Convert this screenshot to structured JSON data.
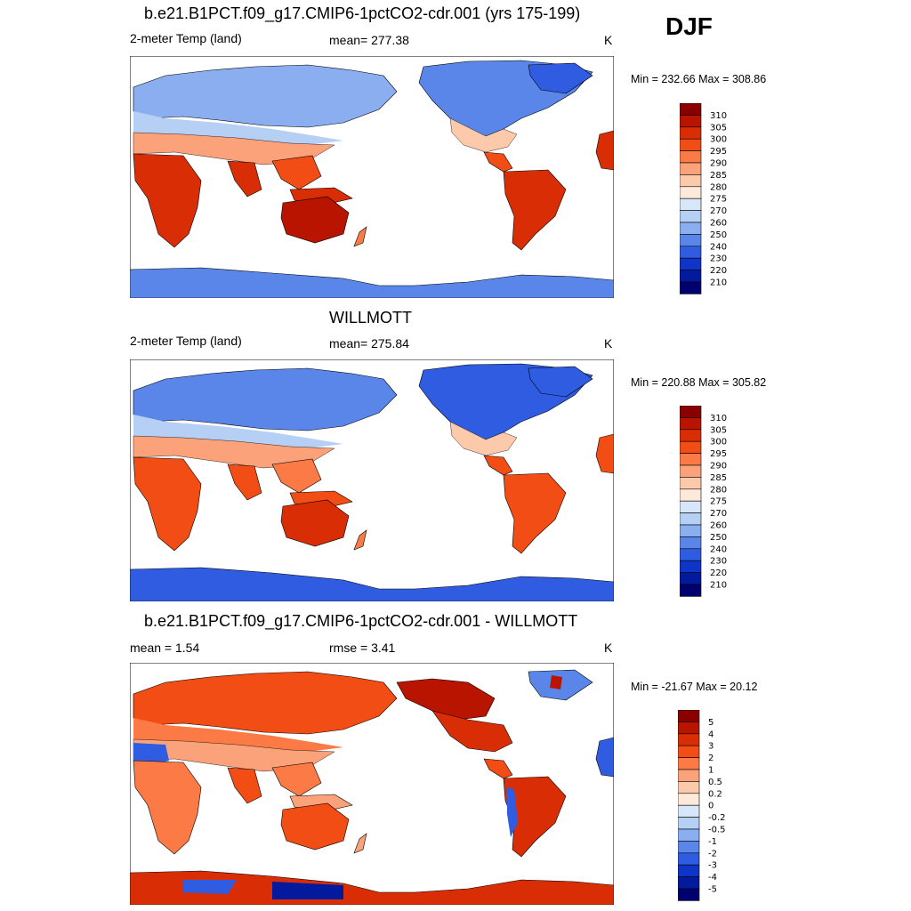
{
  "season": "DJF",
  "units": "K",
  "panels": [
    {
      "title": "b.e21.B1PCT.f09_g17.CMIP6-1pctCO2-cdr.001 (yrs 175-199)",
      "left_label": "2-meter Temp (land)",
      "center_label": "mean= 277.38",
      "right_label": "K",
      "minmax": "Min = 232.66 Max = 308.86"
    },
    {
      "title": "WILLMOTT",
      "left_label": "2-meter Temp (land)",
      "center_label": "mean= 275.84",
      "right_label": "K",
      "minmax": "Min = 220.88 Max = 305.82"
    },
    {
      "title": "b.e21.B1PCT.f09_g17.CMIP6-1pctCO2-cdr.001 - WILLMOTT",
      "left_label": "mean =   1.54",
      "center_label": "rmse =   3.41",
      "right_label": "K",
      "minmax": "Min = -21.67 Max =  20.12"
    }
  ],
  "colorbars": {
    "temperature": {
      "labels": [
        "310",
        "305",
        "300",
        "295",
        "290",
        "285",
        "280",
        "275",
        "270",
        "260",
        "250",
        "240",
        "230",
        "220",
        "210"
      ],
      "colors": [
        "#8a0000",
        "#b81400",
        "#d92e05",
        "#f24d14",
        "#fc7a45",
        "#fca27a",
        "#fdc9ab",
        "#fde9da",
        "#d7e6f8",
        "#b6cff4",
        "#8aaef0",
        "#5a86ea",
        "#2f5ce0",
        "#0f34c8",
        "#041a9e",
        "#00006e"
      ]
    },
    "difference": {
      "labels": [
        "5",
        "4",
        "3",
        "2",
        "1",
        "0.5",
        "0.2",
        "0",
        "-0.2",
        "-0.5",
        "-1",
        "-2",
        "-3",
        "-4",
        "-5"
      ],
      "colors": [
        "#8a0000",
        "#b81400",
        "#d92e05",
        "#f24d14",
        "#fc7a45",
        "#fca27a",
        "#fdc9ab",
        "#fde9da",
        "#d7e6f8",
        "#b6cff4",
        "#8aaef0",
        "#5a86ea",
        "#2f5ce0",
        "#0f34c8",
        "#041a9e",
        "#00006e"
      ]
    }
  },
  "chart_data": [
    {
      "type": "heatmap",
      "title": "b.e21.B1PCT.f09_g17.CMIP6-1pctCO2-cdr.001 (yrs 175-199)",
      "variable": "2-meter Temp (land)",
      "units": "K",
      "mean": 277.38,
      "min": 232.66,
      "max": 308.86,
      "contour_levels": [
        210,
        220,
        230,
        240,
        250,
        260,
        270,
        275,
        280,
        285,
        290,
        295,
        300,
        305,
        310
      ]
    },
    {
      "type": "heatmap",
      "title": "WILLMOTT",
      "variable": "2-meter Temp (land)",
      "units": "K",
      "mean": 275.84,
      "min": 220.88,
      "max": 305.82,
      "contour_levels": [
        210,
        220,
        230,
        240,
        250,
        260,
        270,
        275,
        280,
        285,
        290,
        295,
        300,
        305,
        310
      ]
    },
    {
      "type": "heatmap",
      "title": "b.e21.B1PCT.f09_g17.CMIP6-1pctCO2-cdr.001 - WILLMOTT",
      "units": "K",
      "mean": 1.54,
      "rmse": 3.41,
      "min": -21.67,
      "max": 20.12,
      "contour_levels": [
        -5,
        -4,
        -3,
        -2,
        -1,
        -0.5,
        -0.2,
        0,
        0.2,
        0.5,
        1,
        2,
        3,
        4,
        5
      ]
    }
  ]
}
